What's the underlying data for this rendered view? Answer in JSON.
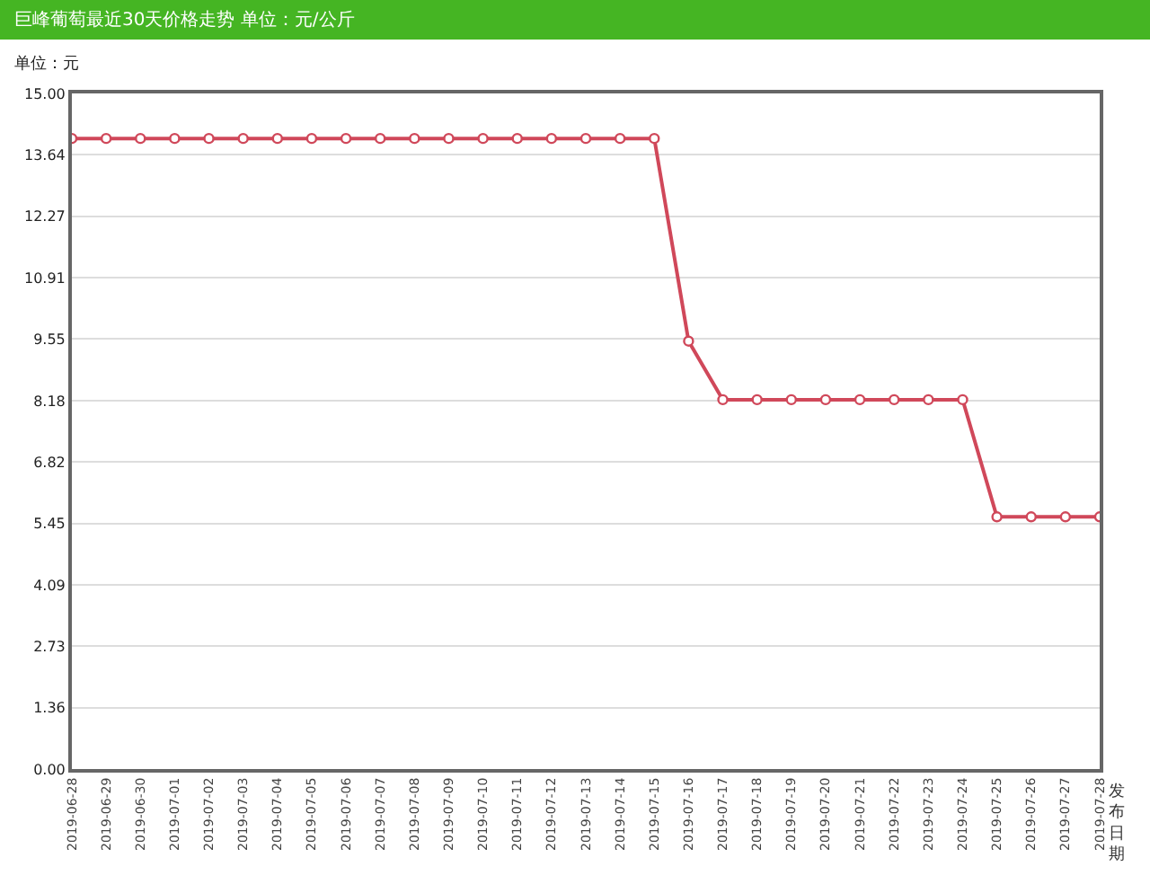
{
  "chart_data": {
    "type": "line",
    "title": "巨峰葡萄最近30天价格走势 单位：元/公斤",
    "ylabel": "单位：元",
    "xlabel": "发布日期",
    "categories": [
      "2019-06-28",
      "2019-06-29",
      "2019-06-30",
      "2019-07-01",
      "2019-07-02",
      "2019-07-03",
      "2019-07-04",
      "2019-07-05",
      "2019-07-06",
      "2019-07-07",
      "2019-07-08",
      "2019-07-09",
      "2019-07-10",
      "2019-07-11",
      "2019-07-12",
      "2019-07-13",
      "2019-07-14",
      "2019-07-15",
      "2019-07-16",
      "2019-07-17",
      "2019-07-18",
      "2019-07-19",
      "2019-07-20",
      "2019-07-21",
      "2019-07-22",
      "2019-07-23",
      "2019-07-24",
      "2019-07-25",
      "2019-07-26",
      "2019-07-27",
      "2019-07-28"
    ],
    "series": [
      {
        "color": "#d0485a",
        "values": [
          14,
          14,
          14,
          14,
          14,
          14,
          14,
          14,
          14,
          14,
          14,
          14,
          14,
          14,
          14,
          14,
          14,
          14,
          9.5,
          8.2,
          8.2,
          8.2,
          8.2,
          8.2,
          8.2,
          8.2,
          8.2,
          5.6,
          5.6,
          5.6,
          5.6
        ]
      }
    ],
    "ylim": [
      0,
      15
    ],
    "yticks": [
      {
        "value": 0,
        "label": "0.00"
      },
      {
        "value": 1.36,
        "label": "1.36"
      },
      {
        "value": 2.73,
        "label": "2.73"
      },
      {
        "value": 4.09,
        "label": "4.09"
      },
      {
        "value": 5.45,
        "label": "5.45"
      },
      {
        "value": 6.82,
        "label": "6.82"
      },
      {
        "value": 8.18,
        "label": "8.18"
      },
      {
        "value": 9.55,
        "label": "9.55"
      },
      {
        "value": 10.91,
        "label": "10.91"
      },
      {
        "value": 12.27,
        "label": "12.27"
      },
      {
        "value": 13.64,
        "label": "13.64"
      },
      {
        "value": 15,
        "label": "15.00"
      }
    ],
    "grid": "y",
    "marker": "circle",
    "line_style": "solid"
  }
}
